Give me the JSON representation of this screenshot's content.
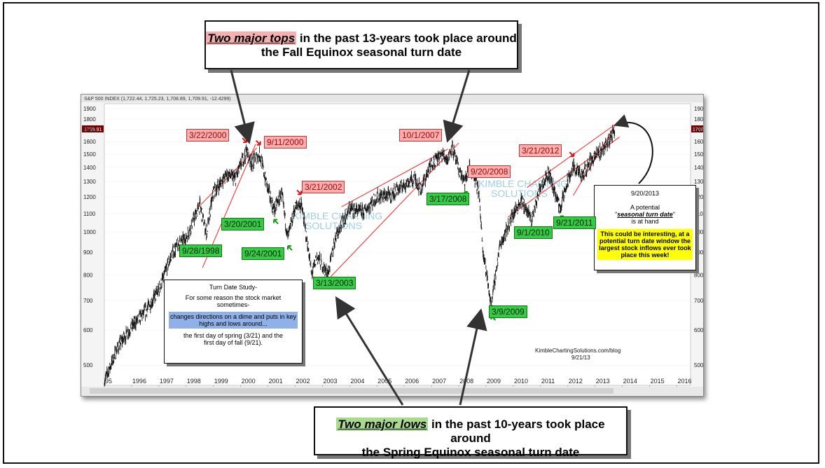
{
  "chart_header": "S&P 500 INDEX (1,722.44, 1,725.23, 1,708.89, 1,709.91, -12.4299)",
  "price_tag": "1709.91",
  "callouts": {
    "top_highlight": "Two major tops",
    "top_rest": " in the past 13-years took place around",
    "top_line2": "the Fall Equinox seasonal turn date",
    "bottom_highlight": "Two major lows",
    "bottom_rest": " in the past 10-years took place around",
    "bottom_line2": "the Spring Equinox seasonal turn date"
  },
  "study_box": {
    "line1": "Turn Date Study-",
    "line2": "For some reason the stock market sometimes-",
    "highlight": "changes directions on a dime and puts in key highs and lows around...",
    "line3": "the first day of spring (3/21) and the first day of fall (9/21)."
  },
  "note_box": {
    "date": "9/20/2013",
    "line1": "A potential",
    "line2_pre": "\"",
    "line2_em": "seasonal turn date",
    "line2_post": "\"",
    "line3": "is at hand",
    "highlight": "This could be interesting, at a potential turn date window the largest stock inflows ever took place this week!"
  },
  "watermark": {
    "line1": "KIMBLE CHARTING",
    "line2": "SOLUTIONS"
  },
  "credit": {
    "site": "KimbleChartingSolutions.com/blog",
    "date": "9/21/13"
  },
  "tops": [
    "3/22/2000",
    "9/11/2000",
    "3/21/2002",
    "10/1/2007",
    "9/20/2008",
    "3/21/2012"
  ],
  "lows": [
    "9/28/1998",
    "3/20/2001",
    "9/24/2001",
    "3/13/2003",
    "3/17/2008",
    "3/9/2009",
    "9/1/2010",
    "9/21/2011"
  ],
  "colors": {
    "top_label": "#f6b0b0",
    "low_label": "#33cc44",
    "trendline": "#ff2020",
    "price": "#111111"
  },
  "chart_data": {
    "type": "line",
    "title": "S&P 500 INDEX",
    "scale": "log",
    "ylim": [
      450,
      1950
    ],
    "y_ticks": [
      500,
      600,
      700,
      800,
      900,
      1000,
      1100,
      1200,
      1300,
      1400,
      1500,
      1600,
      1700,
      1800,
      1900
    ],
    "x_tick_labels": [
      "95",
      "1996",
      "1997",
      "1998",
      "1999",
      "2000",
      "2001",
      "2002",
      "2003",
      "2004",
      "2005",
      "2006",
      "2007",
      "2008",
      "2009",
      "2010",
      "2011",
      "2012",
      "2013",
      "2014",
      "2015",
      "2016"
    ],
    "series": [
      {
        "x": [
          1995.0,
          1995.5,
          1996.0,
          1996.5,
          1997.0,
          1997.5,
          1997.8,
          1998.0,
          1998.5,
          1998.75,
          1999.0,
          1999.5,
          1999.8,
          2000.22,
          2000.4,
          2000.7,
          2000.9,
          2001.22,
          2001.5,
          2001.73,
          2002.0,
          2002.22,
          2002.5,
          2002.6,
          2002.8,
          2003.2,
          2003.5,
          2004.0,
          2004.5,
          2005.0,
          2005.5,
          2006.0,
          2006.4,
          2006.6,
          2007.0,
          2007.4,
          2007.6,
          2007.75,
          2008.0,
          2008.21,
          2008.4,
          2008.72,
          2008.9,
          2009.19,
          2009.5,
          2010.0,
          2010.3,
          2010.67,
          2011.0,
          2011.3,
          2011.72,
          2012.0,
          2012.22,
          2012.5,
          2012.8,
          2013.0,
          2013.5,
          2013.72
        ],
        "values": [
          460,
          550,
          610,
          660,
          740,
          900,
          950,
          970,
          1150,
          990,
          1230,
          1350,
          1320,
          1527,
          1430,
          1500,
          1320,
          1120,
          1220,
          970,
          1140,
          1160,
          900,
          800,
          880,
          800,
          990,
          1130,
          1110,
          1200,
          1210,
          1280,
          1320,
          1250,
          1430,
          1500,
          1460,
          1560,
          1380,
          1290,
          1400,
          1250,
          900,
          680,
          930,
          1100,
          1180,
          1060,
          1280,
          1360,
          1130,
          1300,
          1410,
          1330,
          1440,
          1480,
          1600,
          1709
        ]
      }
    ]
  }
}
